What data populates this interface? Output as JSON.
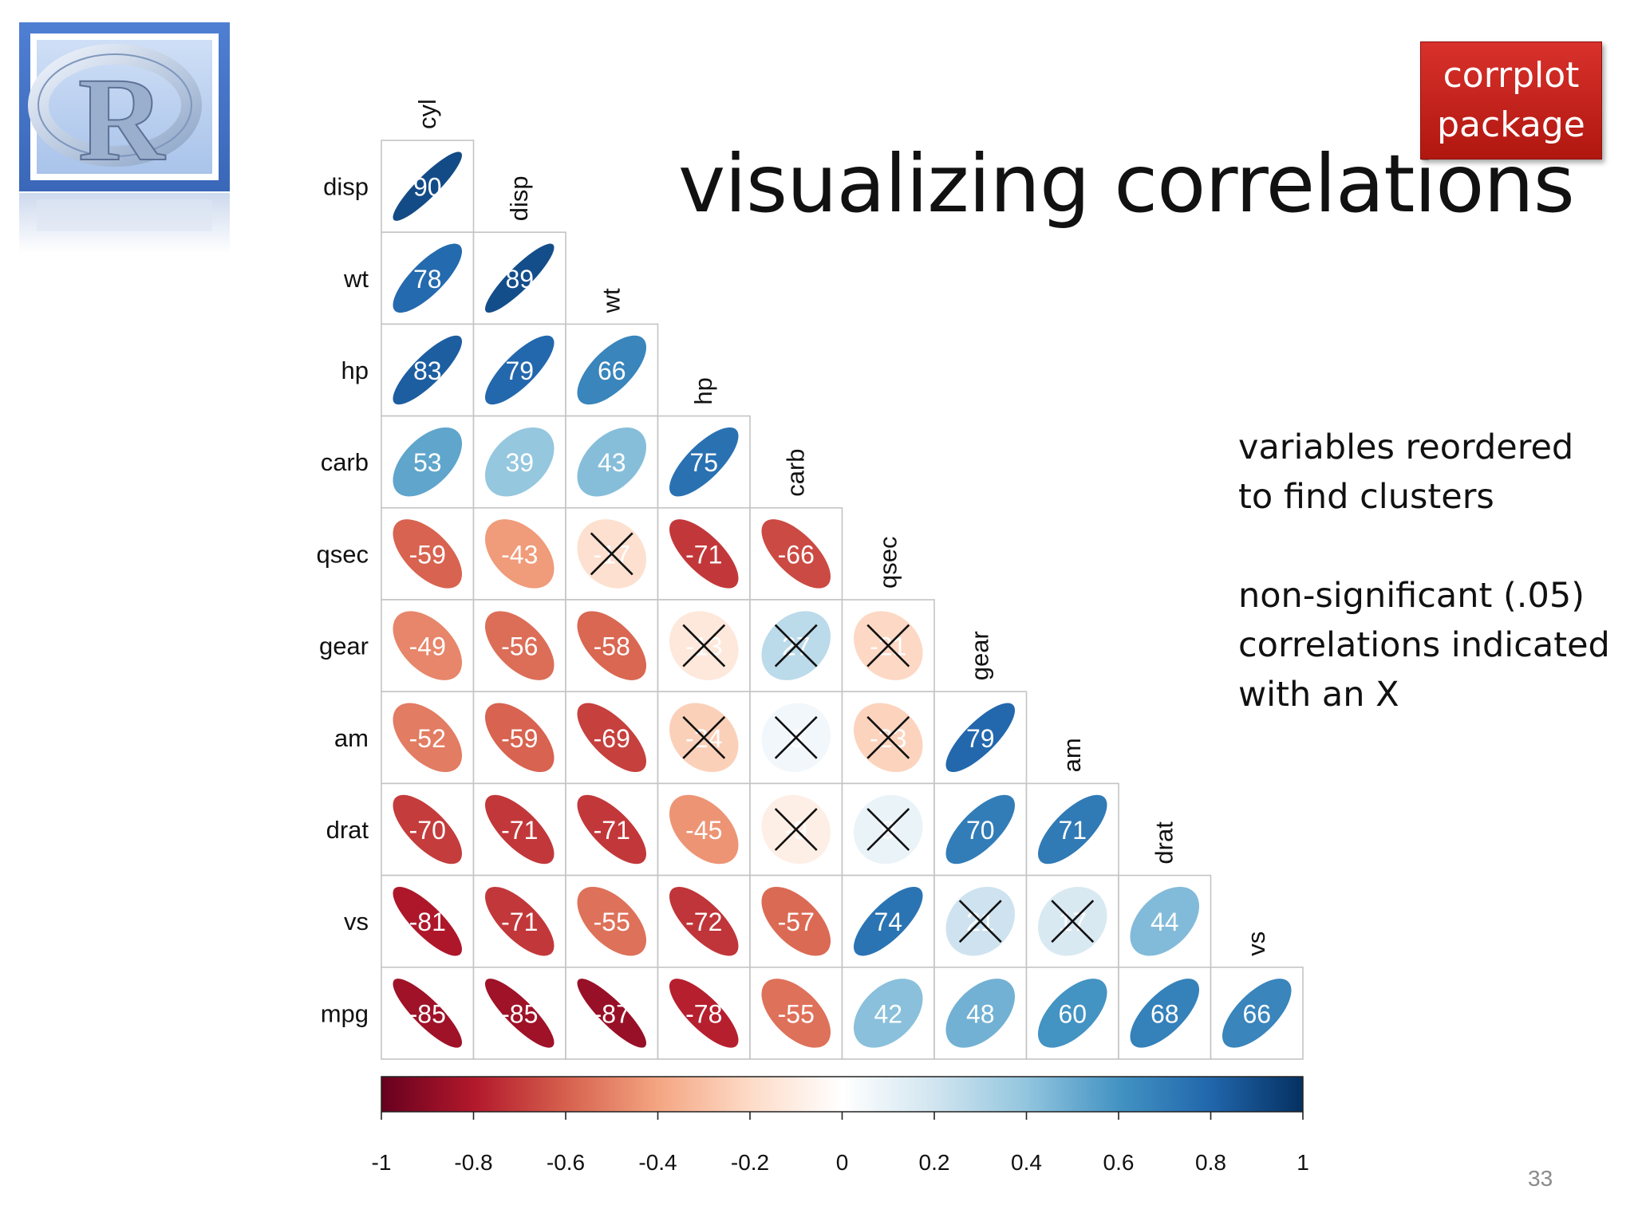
{
  "slide": {
    "title": "visualizing correlations",
    "badge_line1": "corrplot",
    "badge_line2": "package",
    "note1": "variables reordered\nto find clusters",
    "note2": "non-significant (.05)\ncorrelations indicated\nwith an X",
    "page_number": "33",
    "logo_icon": "r-logo-icon"
  },
  "chart_data": {
    "type": "heatmap",
    "variables": [
      "cyl",
      "disp",
      "wt",
      "hp",
      "carb",
      "qsec",
      "gear",
      "am",
      "drat",
      "vs",
      "mpg"
    ],
    "row_labels": [
      "disp",
      "wt",
      "hp",
      "carb",
      "qsec",
      "gear",
      "am",
      "drat",
      "vs",
      "mpg"
    ],
    "column_labels": [
      "cyl",
      "disp",
      "wt",
      "hp",
      "carb",
      "qsec",
      "gear",
      "am",
      "drat",
      "vs"
    ],
    "values": [
      [
        0.9
      ],
      [
        0.78,
        0.89
      ],
      [
        0.83,
        0.79,
        0.66
      ],
      [
        0.53,
        0.39,
        0.43,
        0.75
      ],
      [
        -0.59,
        -0.43,
        -0.17,
        -0.71,
        -0.66
      ],
      [
        -0.49,
        -0.56,
        -0.58,
        -0.13,
        0.27,
        -0.21
      ],
      [
        -0.52,
        -0.59,
        -0.69,
        -0.24,
        0.06,
        -0.23,
        0.79
      ],
      [
        -0.7,
        -0.71,
        -0.71,
        -0.45,
        -0.09,
        0.09,
        0.7,
        0.71
      ],
      [
        -0.81,
        -0.71,
        -0.55,
        -0.72,
        -0.57,
        0.74,
        0.21,
        0.17,
        0.44
      ],
      [
        -0.85,
        -0.85,
        -0.87,
        -0.78,
        -0.55,
        0.42,
        0.48,
        0.6,
        0.68,
        0.66
      ]
    ],
    "cell_labels": [
      [
        "90"
      ],
      [
        "78",
        "89"
      ],
      [
        "83",
        "79",
        "66"
      ],
      [
        "53",
        "39",
        "43",
        "75"
      ],
      [
        "-59",
        "-43",
        "-17",
        "-71",
        "-66"
      ],
      [
        "-49",
        "-56",
        "-58",
        "-13",
        "27",
        "-21"
      ],
      [
        "-52",
        "-59",
        "-69",
        "-24",
        "6",
        "-23",
        "79"
      ],
      [
        "-70",
        "-71",
        "-71",
        "-45",
        "-9",
        "9",
        "70",
        "71"
      ],
      [
        "-81",
        "-71",
        "-55",
        "-72",
        "-57",
        "74",
        "21",
        "17",
        "44"
      ],
      [
        "-85",
        "-85",
        "-87",
        "-78",
        "-55",
        "42",
        "48",
        "60",
        "68",
        "66"
      ]
    ],
    "non_significant": [
      [
        false
      ],
      [
        false,
        false
      ],
      [
        false,
        false,
        false
      ],
      [
        false,
        false,
        false,
        false
      ],
      [
        false,
        false,
        true,
        false,
        false
      ],
      [
        false,
        false,
        false,
        true,
        true,
        true
      ],
      [
        false,
        false,
        false,
        true,
        true,
        true,
        false
      ],
      [
        false,
        false,
        false,
        false,
        true,
        true,
        false,
        false
      ],
      [
        false,
        false,
        false,
        false,
        false,
        false,
        true,
        true,
        false
      ],
      [
        false,
        false,
        false,
        false,
        false,
        false,
        false,
        false,
        false,
        false
      ]
    ],
    "colorbar_ticks": [
      "-1",
      "-0.8",
      "-0.6",
      "-0.4",
      "-0.2",
      "0",
      "0.2",
      "0.4",
      "0.6",
      "0.8",
      "1"
    ],
    "color_scale": [
      "#67001f",
      "#b2182b",
      "#d6604d",
      "#f4a582",
      "#fddbc7",
      "#ffffff",
      "#d1e5f0",
      "#92c5de",
      "#4393c3",
      "#2166ac",
      "#053061"
    ],
    "ylim": [
      -1,
      1
    ],
    "grid": true,
    "legend_placement": "bottom"
  }
}
